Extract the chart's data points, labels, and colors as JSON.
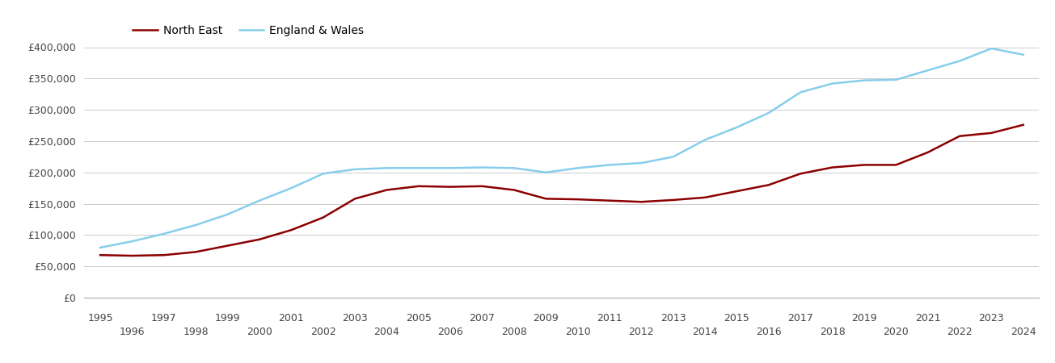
{
  "north_east": {
    "years": [
      1995,
      1996,
      1997,
      1998,
      1999,
      2000,
      2001,
      2002,
      2003,
      2004,
      2005,
      2006,
      2007,
      2008,
      2009,
      2010,
      2011,
      2012,
      2013,
      2014,
      2015,
      2016,
      2017,
      2018,
      2019,
      2020,
      2021,
      2022,
      2023,
      2024
    ],
    "values": [
      68000,
      67000,
      68000,
      73000,
      83000,
      93000,
      108000,
      128000,
      158000,
      172000,
      178000,
      177000,
      178000,
      172000,
      158000,
      157000,
      155000,
      153000,
      156000,
      160000,
      170000,
      180000,
      198000,
      208000,
      212000,
      212000,
      232000,
      258000,
      263000,
      276000
    ]
  },
  "england_wales": {
    "years": [
      1995,
      1996,
      1997,
      1998,
      1999,
      2000,
      2001,
      2002,
      2003,
      2004,
      2005,
      2006,
      2007,
      2008,
      2009,
      2010,
      2011,
      2012,
      2013,
      2014,
      2015,
      2016,
      2017,
      2018,
      2019,
      2020,
      2021,
      2022,
      2023,
      2024
    ],
    "values": [
      80000,
      90000,
      102000,
      116000,
      133000,
      155000,
      175000,
      198000,
      205000,
      207000,
      207000,
      207000,
      208000,
      207000,
      200000,
      207000,
      212000,
      215000,
      225000,
      252000,
      272000,
      295000,
      328000,
      342000,
      347000,
      348000,
      363000,
      378000,
      398000,
      388000
    ]
  },
  "north_east_color": "#8B0000",
  "england_wales_color": "#87CEEB",
  "background_color": "#ffffff",
  "grid_color": "#cccccc",
  "ylim": [
    0,
    400000
  ],
  "yticks": [
    0,
    50000,
    100000,
    150000,
    200000,
    250000,
    300000,
    350000,
    400000
  ],
  "xlim_min": 1994.5,
  "xlim_max": 2024.5,
  "legend_labels": [
    "North East",
    "England & Wales"
  ],
  "line_width": 1.8,
  "odd_years": [
    1995,
    1997,
    1999,
    2001,
    2003,
    2005,
    2007,
    2009,
    2011,
    2013,
    2015,
    2017,
    2019,
    2021,
    2023
  ],
  "even_years": [
    1996,
    1998,
    2000,
    2002,
    2004,
    2006,
    2008,
    2010,
    2012,
    2014,
    2016,
    2018,
    2020,
    2022,
    2024
  ]
}
